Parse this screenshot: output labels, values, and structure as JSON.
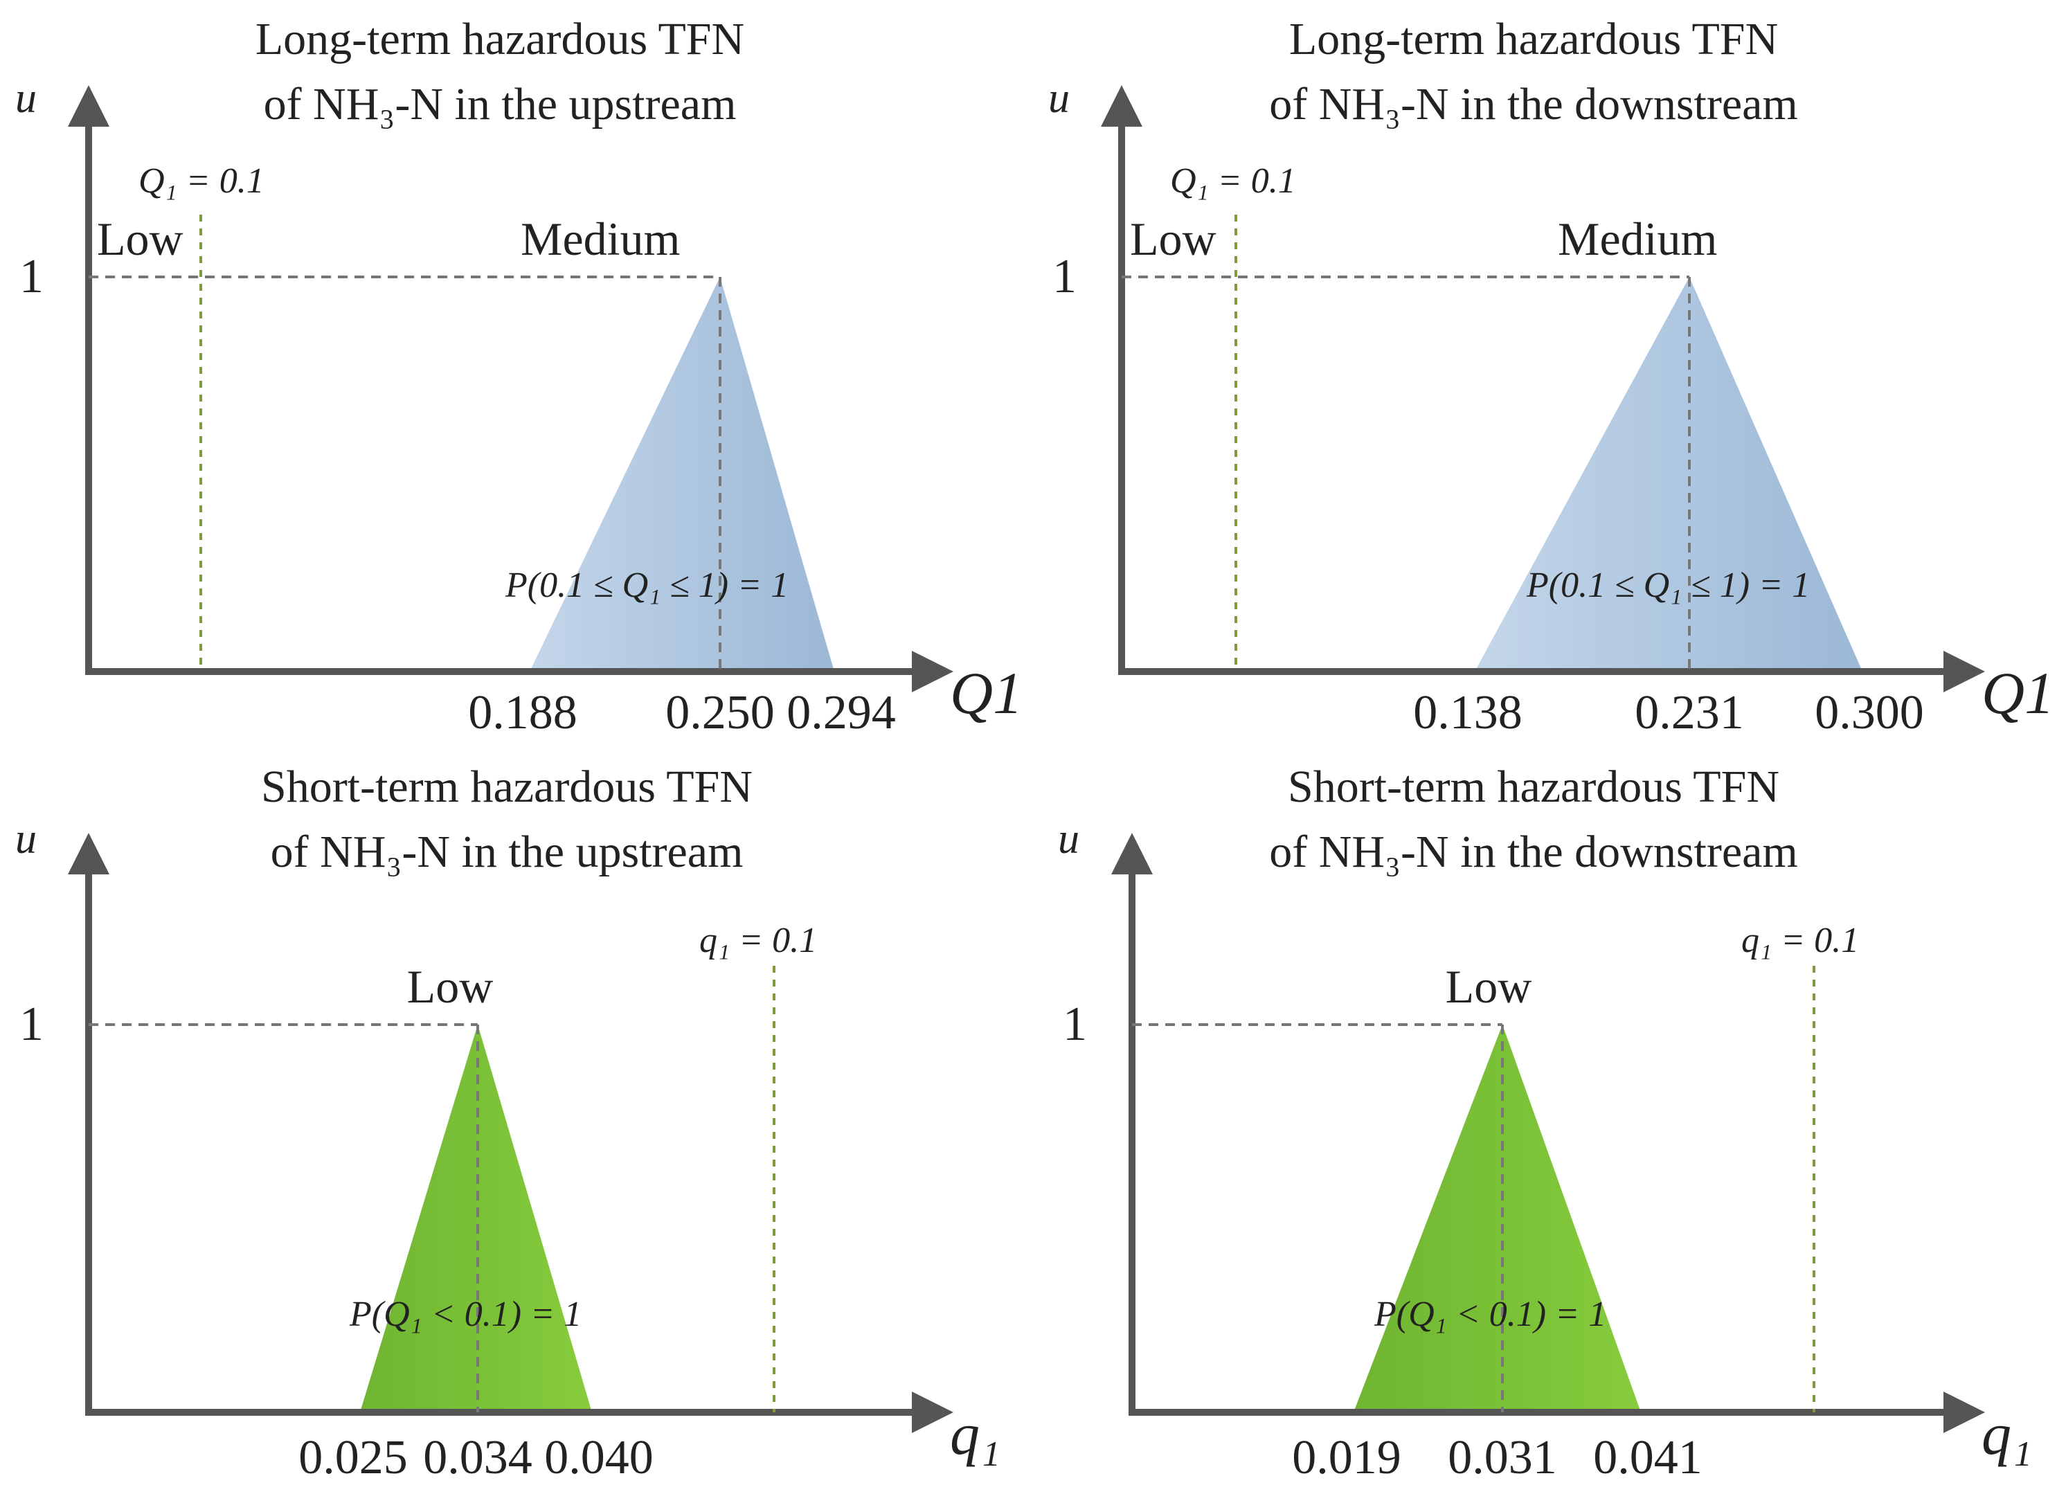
{
  "chart_data": [
    {
      "type": "area",
      "title_line1": "Long-term hazardous TFN",
      "title_line2": "of NH₃-N in the upstream",
      "ylabel": "u",
      "xlabel": "Q1",
      "y_tick": "1",
      "threshold_label": "Q₁ = 0.1",
      "threshold": 0.1,
      "category_left": "Low",
      "category_peak": "Medium",
      "tfn": [
        0.188,
        0.25,
        0.294
      ],
      "tfn_labels": [
        "0.188",
        "0.250",
        "0.294"
      ],
      "prob_label": "P(0.1 ≤ Q₁ ≤ 1) = 1",
      "color": "#a9c3de"
    },
    {
      "type": "area",
      "title_line1": "Long-term hazardous TFN",
      "title_line2": "of NH₃-N in the downstream",
      "ylabel": "u",
      "xlabel": "Q1",
      "y_tick": "1",
      "threshold_label": "Q₁ = 0.1",
      "threshold": 0.1,
      "category_left": "Low",
      "category_peak": "Medium",
      "tfn": [
        0.138,
        0.231,
        0.3
      ],
      "tfn_labels": [
        "0.138",
        "0.231",
        "0.300"
      ],
      "prob_label": "P(0.1 ≤ Q₁ ≤ 1) = 1",
      "color": "#a9c3de"
    },
    {
      "type": "area",
      "title_line1": "Short-term hazardous TFN",
      "title_line2": "of NH₃-N in the upstream",
      "ylabel": "u",
      "xlabel": "q₁",
      "y_tick": "1",
      "threshold_label": "q₁ = 0.1",
      "threshold": 0.1,
      "category_peak": "Low",
      "tfn": [
        0.025,
        0.034,
        0.04
      ],
      "tfn_labels": [
        "0.025",
        "0.034",
        "0.040"
      ],
      "prob_label": "P(Q₁ < 0.1) = 1",
      "color": "#7cc23a"
    },
    {
      "type": "area",
      "title_line1": "Short-term hazardous TFN",
      "title_line2": "of NH₃-N in the downstream",
      "ylabel": "u",
      "xlabel": "q₁",
      "y_tick": "1",
      "threshold_label": "q₁ = 0.1",
      "threshold": 0.1,
      "category_peak": "Low",
      "tfn": [
        0.019,
        0.031,
        0.041
      ],
      "tfn_labels": [
        "0.019",
        "0.031",
        "0.041"
      ],
      "prob_label": "P(Q₁ < 0.1) = 1",
      "color": "#7cc23a"
    }
  ],
  "colors": {
    "axis": "#555555",
    "guide_gray": "#777777",
    "guide_green": "#7f9a3f",
    "blue_fill": "#a9c3de",
    "green_fill": "#7cc23a"
  }
}
